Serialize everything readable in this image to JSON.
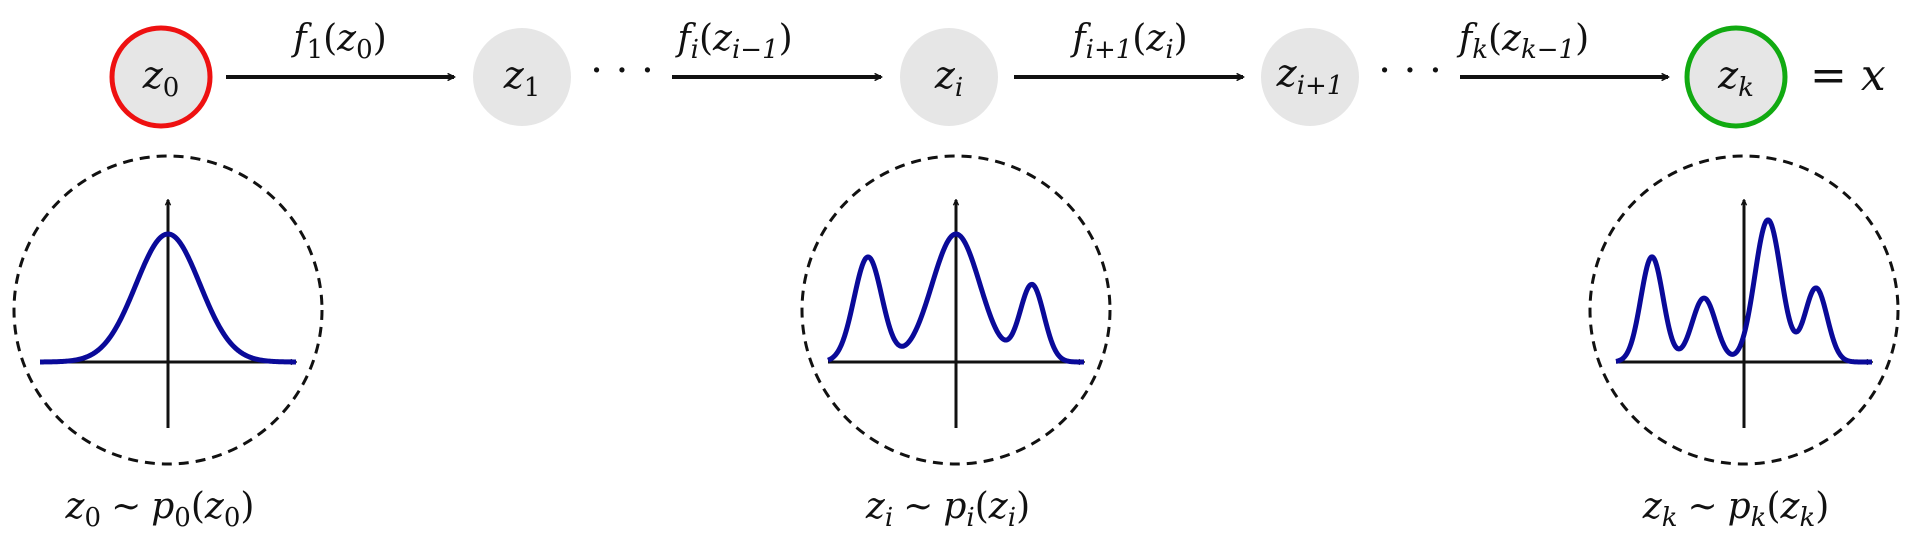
{
  "colors": {
    "initial_node_ring": "#ee1111",
    "final_node_ring": "#11aa11",
    "node_fill": "#e6e6e6",
    "curve": "#0a0a99",
    "ink": "#111111"
  },
  "nodes": [
    {
      "id": "z0",
      "base": "z",
      "sub": "0"
    },
    {
      "id": "z1",
      "base": "z",
      "sub": "1"
    },
    {
      "id": "zi",
      "base": "z",
      "sub": "i"
    },
    {
      "id": "zi1",
      "base": "z",
      "sub": "i+1"
    },
    {
      "id": "zk",
      "base": "z",
      "sub": "k"
    }
  ],
  "arrows": [
    {
      "f_sub": "1",
      "arg_base": "z",
      "arg_sub": "0"
    },
    {
      "f_sub": "i",
      "arg_base": "z",
      "arg_sub": "i−1"
    },
    {
      "f_sub": "i+1",
      "arg_base": "z",
      "arg_sub": "i"
    },
    {
      "f_sub": "k",
      "arg_base": "z",
      "arg_sub": "k−1"
    }
  ],
  "ellipsis": "· · ·",
  "final_equation": {
    "symbol": "=",
    "var": "x"
  },
  "distributions": [
    {
      "var_sub": "0",
      "dist_sub": "0",
      "tilde": "∼",
      "base": "z",
      "dist": "p"
    },
    {
      "var_sub": "i",
      "dist_sub": "i",
      "tilde": "∼",
      "base": "z",
      "dist": "p"
    },
    {
      "var_sub": "k",
      "dist_sub": "k",
      "tilde": "∼",
      "base": "z",
      "dist": "p"
    }
  ],
  "densities": [
    {
      "name": "single-gaussian",
      "components": [
        {
          "mean": 0,
          "sd": 0.8,
          "weight": 1.0
        }
      ]
    },
    {
      "name": "three-mode-mixture",
      "components": [
        {
          "mean": -2.2,
          "sd": 0.35,
          "weight": 0.82
        },
        {
          "mean": 0.0,
          "sd": 0.6,
          "weight": 1.0
        },
        {
          "mean": 1.9,
          "sd": 0.3,
          "weight": 0.6
        }
      ]
    },
    {
      "name": "four-mode-mixture",
      "components": [
        {
          "mean": -2.3,
          "sd": 0.28,
          "weight": 0.74
        },
        {
          "mean": -1.0,
          "sd": 0.3,
          "weight": 0.45
        },
        {
          "mean": 0.6,
          "sd": 0.33,
          "weight": 1.0
        },
        {
          "mean": 1.8,
          "sd": 0.28,
          "weight": 0.52
        }
      ]
    }
  ]
}
